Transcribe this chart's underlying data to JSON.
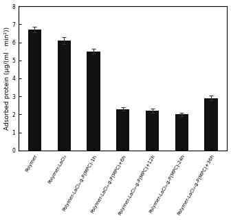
{
  "categories": [
    "Polymer",
    "Polymer-LaCl₃",
    "Polymer-LaCl₃-g-P(MPC)-1h",
    "Polymer-LaCl₃-g-P(MPC)+6h",
    "Polymer-LaCl₃-g-P(MPC)+12h",
    "Polymer-LaCl₃-g-P(MPC)-24h",
    "Polymer-LaCl₃-g-P(MPC)+36h"
  ],
  "values": [
    6.7,
    6.1,
    5.5,
    2.3,
    2.2,
    2.0,
    2.9
  ],
  "errors": [
    0.15,
    0.18,
    0.12,
    0.1,
    0.12,
    0.08,
    0.13
  ],
  "bar_color": "#111111",
  "ylabel": "Adsorbed protein (μg/(ml · min²))",
  "ylim": [
    0,
    8.0
  ],
  "yticks": [
    0.0,
    1.0,
    2.0,
    3.0,
    4.0,
    5.0,
    6.0,
    7.0,
    8.0
  ],
  "background_color": "#ffffff",
  "bar_width": 0.45,
  "ylabel_fontsize": 6.5,
  "tick_fontsize": 5.5,
  "xlabel_fontsize": 5.0,
  "xlabel_rotation": 60
}
